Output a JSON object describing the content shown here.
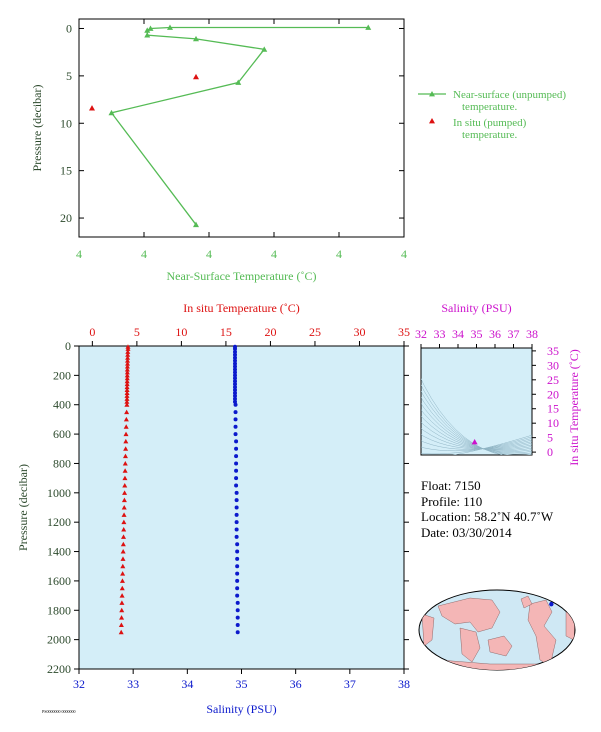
{
  "colors": {
    "green": "#55bb55",
    "red": "#dd1111",
    "blue": "#0b19cc",
    "magenta": "#cc11cc",
    "panel_fill": "#d4eef8",
    "axis_dark": "#2d4a2d"
  },
  "chart_data": [
    {
      "type": "line",
      "panel": "near-surface",
      "xlabel": "Near-Surface Temperature (˚C)",
      "ylabel": "Pressure (decibar)",
      "x_tick_labels": [
        "4",
        "4",
        "4",
        "4",
        "4",
        "4"
      ],
      "y_ticks": [
        0,
        5,
        10,
        15,
        20
      ],
      "ylim": [
        22,
        -1
      ],
      "xlim": [
        3.5,
        4.5
      ],
      "legend_position": "right",
      "series": [
        {
          "name": "Near-surface (unpumped) temperature.",
          "marker": "triangle",
          "points": [
            {
              "x": 4.39,
              "y": -0.1
            },
            {
              "x": 3.78,
              "y": -0.1
            },
            {
              "x": 3.72,
              "y": 0
            },
            {
              "x": 3.71,
              "y": 0.2
            },
            {
              "x": 3.71,
              "y": 0.7
            },
            {
              "x": 3.86,
              "y": 1.1
            },
            {
              "x": 4.07,
              "y": 2.2
            },
            {
              "x": 3.99,
              "y": 5.7
            },
            {
              "x": 3.6,
              "y": 8.9
            },
            {
              "x": 3.86,
              "y": 20.7
            }
          ]
        },
        {
          "name": "In situ (pumped) temperature.",
          "marker": "triangle",
          "points": [
            {
              "x": 3.54,
              "y": 8.4
            },
            {
              "x": 3.86,
              "y": 5.1
            }
          ]
        }
      ]
    },
    {
      "type": "scatter",
      "panel": "profile",
      "title": "In situ Temperature (˚C)",
      "xlabel": "Salinity (PSU)",
      "ylabel": "Pressure (decibar)",
      "temperature_ticks": [
        0,
        5,
        10,
        15,
        20,
        25,
        30,
        35
      ],
      "salinity_ticks": [
        32,
        33,
        34,
        35,
        36,
        37,
        38
      ],
      "pressure_ticks": [
        0,
        200,
        400,
        600,
        800,
        1000,
        1200,
        1400,
        1600,
        1800,
        2000,
        2200
      ],
      "temperature_range": [
        -1.5,
        35
      ],
      "salinity_range": [
        32,
        38
      ],
      "pressure_range": [
        0,
        2200
      ],
      "series": [
        {
          "name": "In situ temperature",
          "marker": "triangle",
          "pressure": [
            5,
            20,
            40,
            60,
            80,
            100,
            120,
            140,
            160,
            180,
            200,
            220,
            240,
            260,
            280,
            300,
            320,
            340,
            360,
            380,
            400,
            450,
            500,
            550,
            600,
            650,
            700,
            750,
            800,
            850,
            900,
            950,
            1000,
            1050,
            1100,
            1150,
            1200,
            1250,
            1300,
            1350,
            1400,
            1450,
            1500,
            1550,
            1600,
            1650,
            1700,
            1750,
            1800,
            1850,
            1900,
            1950
          ],
          "values": [
            4.0,
            4.0,
            3.98,
            3.97,
            3.96,
            3.95,
            3.95,
            3.94,
            3.93,
            3.93,
            3.92,
            3.92,
            3.91,
            3.91,
            3.9,
            3.9,
            3.9,
            3.89,
            3.89,
            3.88,
            3.88,
            3.85,
            3.82,
            3.8,
            3.78,
            3.76,
            3.74,
            3.72,
            3.7,
            3.68,
            3.66,
            3.64,
            3.62,
            3.6,
            3.58,
            3.56,
            3.54,
            3.52,
            3.5,
            3.48,
            3.46,
            3.44,
            3.42,
            3.4,
            3.38,
            3.36,
            3.34,
            3.32,
            3.3,
            3.28,
            3.26,
            3.24
          ]
        },
        {
          "name": "Salinity",
          "marker": "circle",
          "pressure": [
            5,
            20,
            40,
            60,
            80,
            100,
            120,
            140,
            160,
            180,
            200,
            220,
            240,
            260,
            280,
            300,
            320,
            340,
            360,
            380,
            400,
            450,
            500,
            550,
            600,
            650,
            700,
            750,
            800,
            850,
            900,
            950,
            1000,
            1050,
            1100,
            1150,
            1200,
            1250,
            1300,
            1350,
            1400,
            1450,
            1500,
            1550,
            1600,
            1650,
            1700,
            1750,
            1800,
            1850,
            1900,
            1950
          ],
          "values": [
            34.88,
            34.88,
            34.88,
            34.88,
            34.88,
            34.88,
            34.88,
            34.88,
            34.88,
            34.88,
            34.88,
            34.88,
            34.88,
            34.88,
            34.88,
            34.88,
            34.88,
            34.88,
            34.88,
            34.88,
            34.89,
            34.89,
            34.89,
            34.89,
            34.89,
            34.9,
            34.9,
            34.9,
            34.9,
            34.9,
            34.9,
            34.9,
            34.91,
            34.91,
            34.91,
            34.91,
            34.91,
            34.91,
            34.91,
            34.92,
            34.92,
            34.92,
            34.92,
            34.92,
            34.92,
            34.92,
            34.92,
            34.93,
            34.93,
            34.93,
            34.93,
            34.93
          ]
        }
      ]
    },
    {
      "type": "scatter",
      "panel": "ts-diagram",
      "title": "Salinity (PSU)",
      "ylabel": "In situ Temperature (˚C)",
      "salinity_ticks": [
        32,
        33,
        34,
        35,
        36,
        37,
        38
      ],
      "temperature_ticks": [
        0,
        5,
        10,
        15,
        20,
        25,
        30,
        35
      ],
      "xlim": [
        32,
        38
      ],
      "ylim": [
        -1,
        36
      ],
      "points": [
        {
          "x": 34.9,
          "y": 3.5
        }
      ]
    }
  ],
  "info": {
    "float": "Float:  7150",
    "profile": "Profile:  110",
    "location": "Location:  58.2˚N  40.7˚W",
    "date": "Date:  03/30/2014"
  },
  "map": {
    "marker_lat": 58.2,
    "marker_lon": -40.7
  },
  "footer_code": "PS0000000 0000000"
}
